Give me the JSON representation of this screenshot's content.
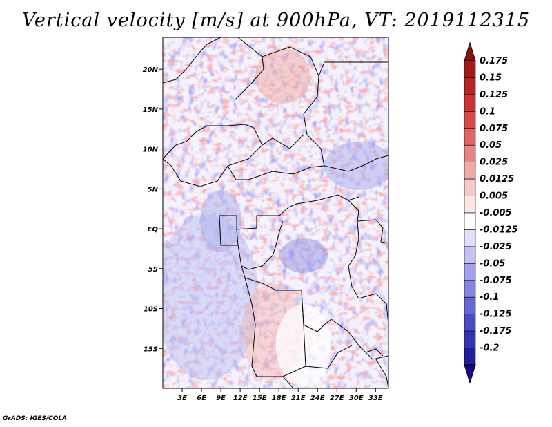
{
  "title": "Vertical velocity [m/s] at 900hPa, VT: 2019112315",
  "credit": "GrADS: IGES/COLA",
  "map": {
    "lat_range": [
      -20,
      24
    ],
    "lon_range": [
      0,
      35
    ],
    "lat_ticks": [
      {
        "value": 20,
        "label": "20N"
      },
      {
        "value": 15,
        "label": "15N"
      },
      {
        "value": 10,
        "label": "10N"
      },
      {
        "value": 5,
        "label": "5N"
      },
      {
        "value": 0,
        "label": "EQ"
      },
      {
        "value": -5,
        "label": "5S"
      },
      {
        "value": -10,
        "label": "10S"
      },
      {
        "value": -15,
        "label": "15S"
      }
    ],
    "lon_ticks": [
      {
        "value": 3,
        "label": "3E"
      },
      {
        "value": 6,
        "label": "6E"
      },
      {
        "value": 9,
        "label": "9E"
      },
      {
        "value": 12,
        "label": "12E"
      },
      {
        "value": 15,
        "label": "15E"
      },
      {
        "value": 18,
        "label": "18E"
      },
      {
        "value": 21,
        "label": "21E"
      },
      {
        "value": 24,
        "label": "24E"
      },
      {
        "value": 27,
        "label": "27E"
      },
      {
        "value": 30,
        "label": "30E"
      },
      {
        "value": 33,
        "label": "33E"
      }
    ]
  },
  "colorbar": {
    "levels": [
      {
        "label": "0.175",
        "color": "#a31a1a"
      },
      {
        "label": "0.15",
        "color": "#b82424"
      },
      {
        "label": "0.125",
        "color": "#cc3333"
      },
      {
        "label": "0.1",
        "color": "#d84a4a"
      },
      {
        "label": "0.075",
        "color": "#e06666"
      },
      {
        "label": "0.05",
        "color": "#e88484"
      },
      {
        "label": "0.025",
        "color": "#f0a8a8"
      },
      {
        "label": "0.0125",
        "color": "#f7caca"
      },
      {
        "label": "0.005",
        "color": "#fde6e6"
      },
      {
        "label": "-0.005",
        "color": "#ffffff"
      },
      {
        "label": "-0.0125",
        "color": "#e0e0fb"
      },
      {
        "label": "-0.025",
        "color": "#c2c2f3"
      },
      {
        "label": "-0.05",
        "color": "#a3a3ec"
      },
      {
        "label": "-0.075",
        "color": "#8585e2"
      },
      {
        "label": "-0.1",
        "color": "#6666d6"
      },
      {
        "label": "-0.125",
        "color": "#4b4bc8"
      },
      {
        "label": "-0.175",
        "color": "#3333b4"
      },
      {
        "label": "-0.2",
        "color": "#1f1f9a"
      }
    ],
    "top_triangle_color": "#8b1010",
    "bottom_triangle_color": "#1a0a8a"
  }
}
